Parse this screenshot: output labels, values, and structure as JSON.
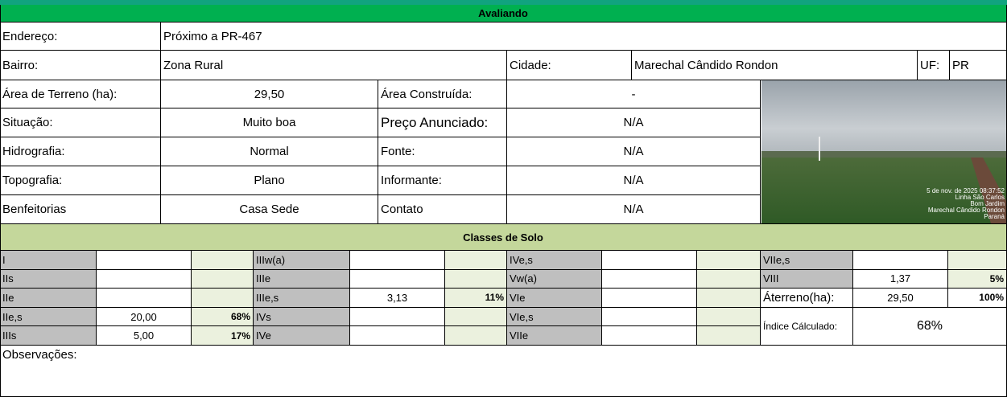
{
  "header": {
    "title": "Avaliando"
  },
  "property": {
    "address_label": "Endereço:",
    "address": "Próximo a PR-467",
    "district_label": "Bairro:",
    "district": "Zona Rural",
    "city_label": "Cidade:",
    "city": "Marechal Cândido Rondon",
    "uf_label": "UF:",
    "uf": "PR"
  },
  "details": [
    [
      "Área de Terreno (ha):",
      "29,50",
      "Área Construída:",
      "-"
    ],
    [
      "Situação:",
      "Muito boa",
      "Preço Anunciado:",
      "N/A"
    ],
    [
      "Hidrografia:",
      "Normal",
      "Fonte:",
      "N/A"
    ],
    [
      "Topografia:",
      "Plano",
      "Informante:",
      "N/A"
    ],
    [
      "Benfeitorias",
      "Casa Sede",
      "Contato",
      "N/A"
    ]
  ],
  "photo_stamp": [
    "5 de nov. de 2025 08:37:52",
    "Linha São Carlos",
    "Bom Jardim",
    "Marechal Cândido Rondon",
    "Paraná"
  ],
  "soil": {
    "title": "Classes de Solo",
    "classes": [
      {
        "class": "I"
      },
      {
        "class": "IIs"
      },
      {
        "class": "IIe"
      },
      {
        "class": "IIe,s",
        "area": "20,00",
        "share": "68%"
      },
      {
        "class": "IIIs",
        "area": "5,00",
        "share": "17%"
      },
      {
        "class": "IIIw(a)"
      },
      {
        "class": "IIIe"
      },
      {
        "class": "IIIe,s",
        "area": "3,13",
        "share": "11%"
      },
      {
        "class": "IVs"
      },
      {
        "class": "IVe"
      },
      {
        "class": "IVe,s"
      },
      {
        "class": "Vw(a)"
      },
      {
        "class": "VIe"
      },
      {
        "class": "VIe,s"
      },
      {
        "class": "VIIe"
      },
      {
        "class": "VIIe,s"
      },
      {
        "class": "VIII",
        "area": "1,37",
        "share": "5%"
      }
    ],
    "total": {
      "label": "Áterreno(ha):",
      "area": "29,50",
      "share": "100%"
    },
    "index": {
      "label": "Índice Cálculado:",
      "value": "68%"
    }
  },
  "observations_label": "Observações:"
}
